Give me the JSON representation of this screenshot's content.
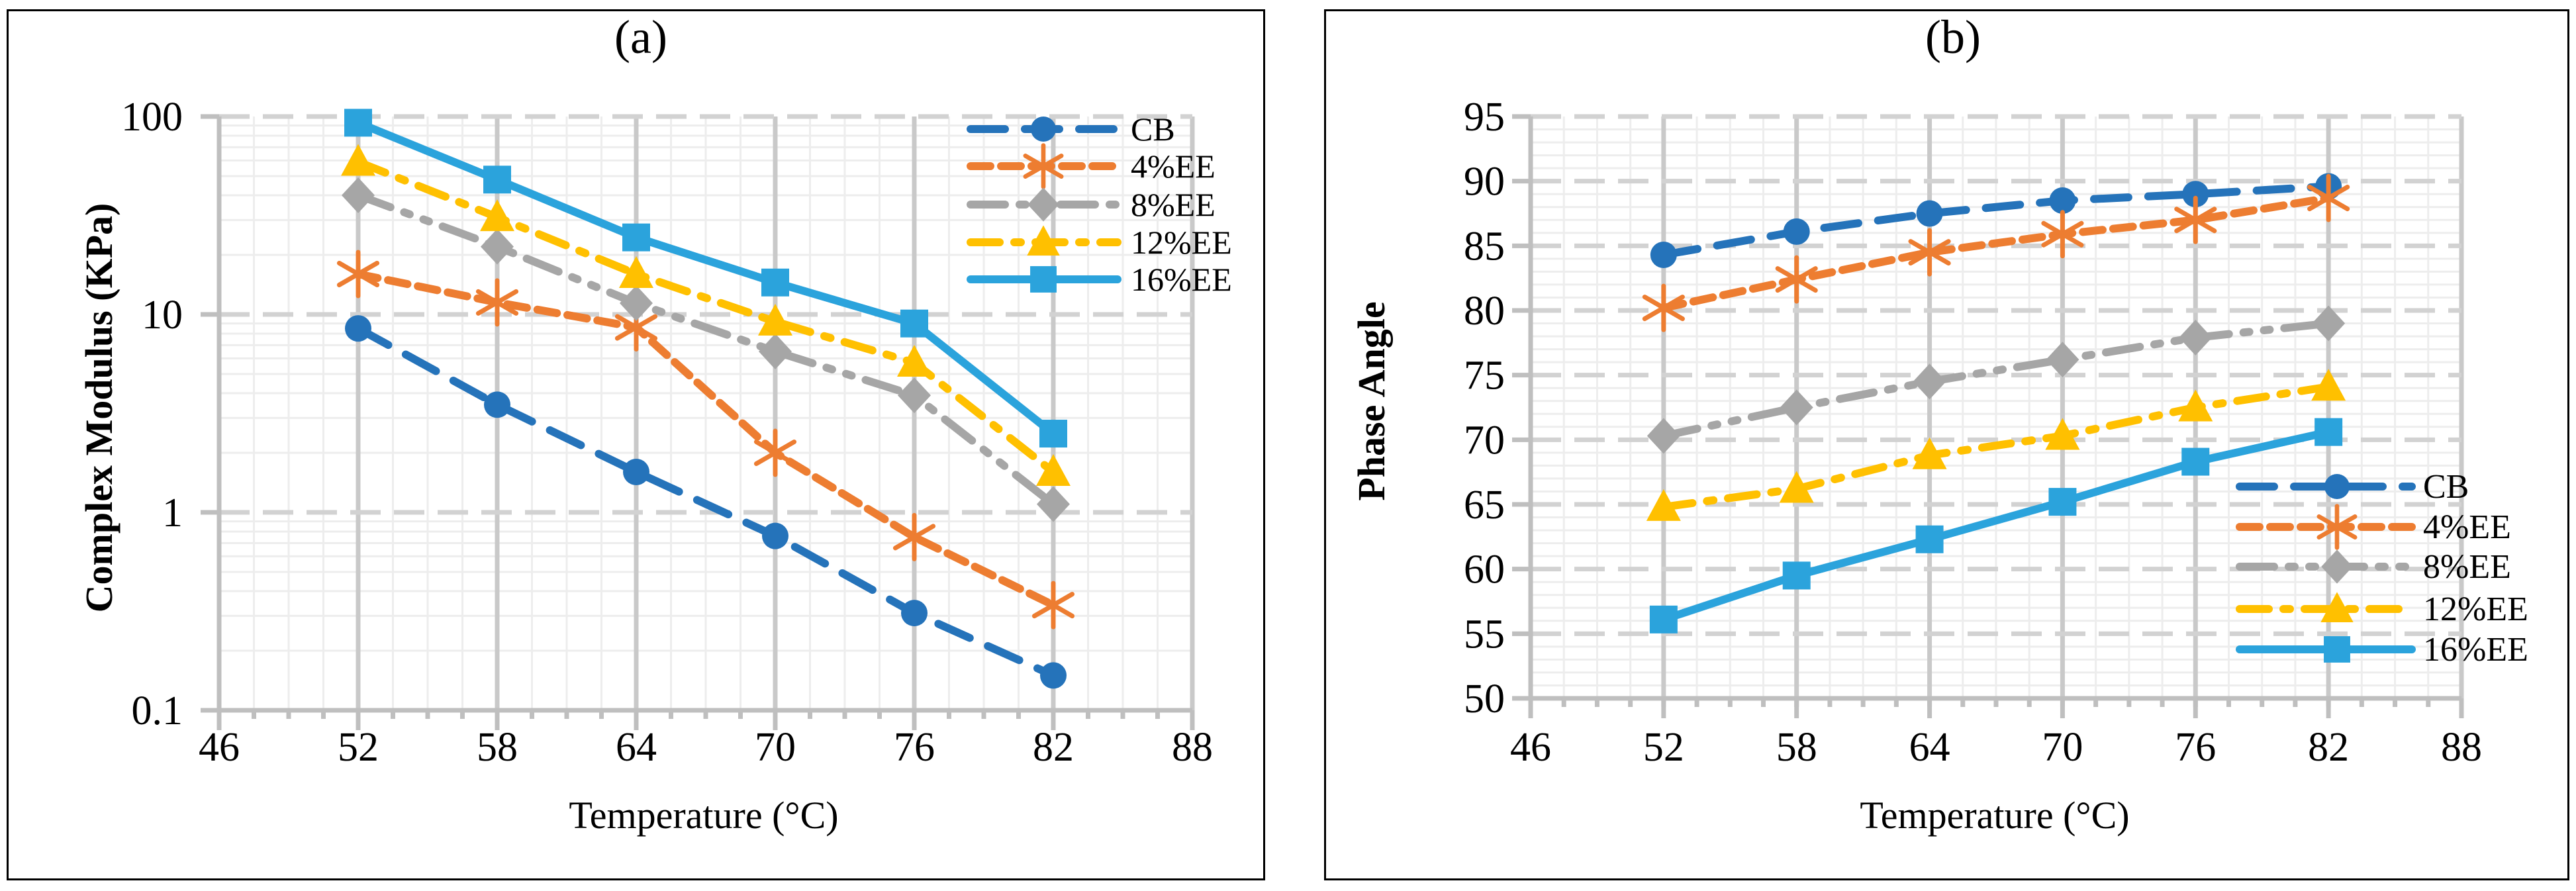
{
  "figure": {
    "background": "#ffffff",
    "text_color": "#000000",
    "grid_minor_color": "#ededed",
    "grid_major_color": "#d2d2d2",
    "axis_color": "#bfbfbf"
  },
  "chart_data": [
    {
      "id": "a",
      "type": "line",
      "title": "(a)",
      "xlabel": "Temperature (°C)",
      "ylabel": "Complex Modulus (KPa)",
      "x": [
        52,
        58,
        64,
        70,
        76,
        82
      ],
      "xlim": [
        46,
        88
      ],
      "x_ticks": [
        46,
        52,
        58,
        64,
        70,
        76,
        82,
        88
      ],
      "x_minor_step": 1.5,
      "y_scale": "log",
      "ylim": [
        0.1,
        100
      ],
      "y_ticks": [
        0.1,
        1,
        10,
        100
      ],
      "y_tick_labels": [
        "0.1",
        "1",
        "10",
        "100"
      ],
      "grid": true,
      "legend_position": "inside-top-right",
      "series": [
        {
          "name": "CB",
          "color": "#2573BA",
          "line_style": "long-dash",
          "marker": "circle",
          "values": [
            8.5,
            3.5,
            1.6,
            0.76,
            0.31,
            0.15
          ]
        },
        {
          "name": "4%EE",
          "color": "#ED7D31",
          "line_style": "dash",
          "marker": "asterisk",
          "values": [
            16,
            11.5,
            8.6,
            2.0,
            0.75,
            0.34
          ]
        },
        {
          "name": "8%EE",
          "color": "#A6A6A6",
          "line_style": "dash-dot-dot",
          "marker": "diamond",
          "values": [
            40,
            22,
            11.4,
            6.5,
            3.9,
            1.1
          ]
        },
        {
          "name": "12%EE",
          "color": "#FFC000",
          "line_style": "dash-dot",
          "marker": "triangle",
          "values": [
            59,
            31,
            16,
            9.2,
            5.7,
            1.6
          ]
        },
        {
          "name": "16%EE",
          "color": "#2BA3DC",
          "line_style": "solid",
          "marker": "square",
          "values": [
            93,
            48,
            24.5,
            14.5,
            9.0,
            2.5
          ]
        }
      ]
    },
    {
      "id": "b",
      "type": "line",
      "title": "(b)",
      "xlabel": "Temperature (°C)",
      "ylabel": "Phase Angle",
      "x": [
        52,
        58,
        64,
        70,
        76,
        82
      ],
      "xlim": [
        46,
        88
      ],
      "x_ticks": [
        46,
        52,
        58,
        64,
        70,
        76,
        82,
        88
      ],
      "x_minor_step": 1.5,
      "y_scale": "linear",
      "ylim": [
        50,
        95
      ],
      "y_ticks": [
        50,
        55,
        60,
        65,
        70,
        75,
        80,
        85,
        90,
        95
      ],
      "y_tick_labels": [
        "50",
        "55",
        "60",
        "65",
        "70",
        "75",
        "80",
        "85",
        "90",
        "95"
      ],
      "y_minor_step": 1,
      "grid": true,
      "legend_position": "inside-middle-right",
      "series": [
        {
          "name": "CB",
          "color": "#2573BA",
          "line_style": "long-dash",
          "marker": "circle",
          "values": [
            84.3,
            86.1,
            87.5,
            88.5,
            89.0,
            89.6
          ]
        },
        {
          "name": "4%EE",
          "color": "#ED7D31",
          "line_style": "dash",
          "marker": "asterisk",
          "values": [
            80.2,
            82.4,
            84.5,
            85.9,
            87.0,
            88.7
          ]
        },
        {
          "name": "8%EE",
          "color": "#A6A6A6",
          "line_style": "dash-dot-dot",
          "marker": "diamond",
          "values": [
            70.3,
            72.5,
            74.5,
            76.2,
            77.9,
            79.0
          ]
        },
        {
          "name": "12%EE",
          "color": "#FFC000",
          "line_style": "dash-dot",
          "marker": "triangle",
          "values": [
            64.8,
            66.2,
            68.8,
            70.3,
            72.5,
            74.1
          ]
        },
        {
          "name": "16%EE",
          "color": "#2BA3DC",
          "line_style": "solid",
          "marker": "square",
          "values": [
            56.1,
            59.5,
            62.3,
            65.2,
            68.3,
            70.6
          ]
        }
      ]
    }
  ]
}
